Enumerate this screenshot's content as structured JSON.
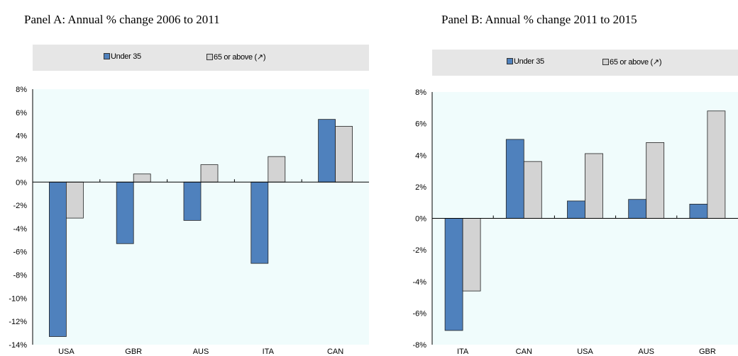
{
  "colors": {
    "under35": "#4f81bd",
    "over65": "#d3d3d3",
    "plot_bg": "#f0fcfc",
    "legend_bg": "#e6e6e6",
    "bar_border": "#222222"
  },
  "chart_data": [
    {
      "type": "bar",
      "title": "Panel A: Annual % change 2006 to 2011",
      "categories": [
        "USA",
        "GBR",
        "AUS",
        "ITA",
        "CAN"
      ],
      "series": [
        {
          "name": "Under 35",
          "values": [
            -13.3,
            -5.3,
            -3.3,
            -7.0,
            5.4
          ]
        },
        {
          "name": "65 or above (↗)",
          "values": [
            -3.1,
            0.7,
            1.5,
            2.2,
            4.8
          ]
        }
      ],
      "yticks": [
        "8%",
        "6%",
        "4%",
        "2%",
        "0%",
        "-2%",
        "-4%",
        "-6%",
        "-8%",
        "-10%",
        "-12%",
        "-14%"
      ],
      "ylim": [
        -14,
        8
      ],
      "legend": "top",
      "grid": false
    },
    {
      "type": "bar",
      "title": "Panel B: Annual % change 2011 to 2015",
      "categories": [
        "ITA",
        "CAN",
        "USA",
        "AUS",
        "GBR"
      ],
      "series": [
        {
          "name": "Under 35",
          "values": [
            -7.1,
            5.0,
            1.1,
            1.2,
            0.9
          ]
        },
        {
          "name": "65 or above (↗)",
          "values": [
            -4.6,
            3.6,
            4.1,
            4.8,
            6.8
          ]
        }
      ],
      "yticks": [
        "8%",
        "6%",
        "4%",
        "2%",
        "0%",
        "-2%",
        "-4%",
        "-6%",
        "-8%"
      ],
      "ylim": [
        -8,
        8
      ],
      "legend": "top",
      "grid": false
    }
  ]
}
